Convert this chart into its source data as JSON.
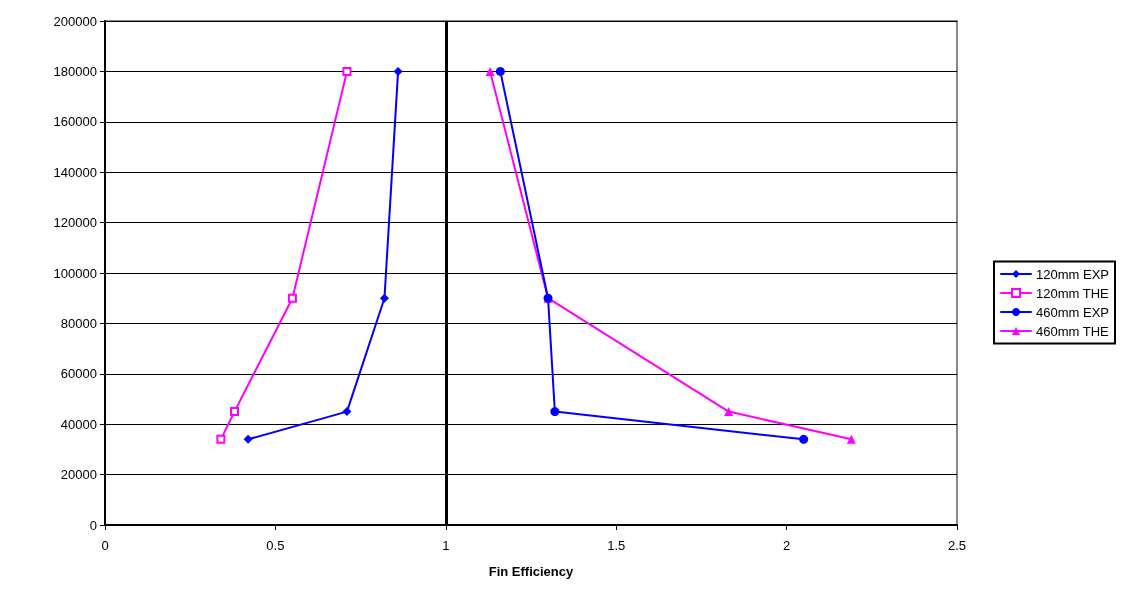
{
  "chart_data": {
    "type": "line",
    "xlabel": "Fin Efficiency",
    "xlim": [
      0,
      2.5
    ],
    "xticks": [
      0,
      0.5,
      1,
      1.5,
      2,
      2.5
    ],
    "ylim": [
      0,
      200000
    ],
    "yticks": [
      0,
      20000,
      40000,
      60000,
      80000,
      100000,
      120000,
      140000,
      160000,
      180000,
      200000
    ],
    "grid": "y",
    "legend": "right",
    "line_style": "solid",
    "ref_lines": [
      {
        "axis": "x",
        "value": 1,
        "color": "#000000"
      }
    ],
    "series": [
      {
        "name": "120mm EXP",
        "color": "#0000ff",
        "marker": "diamond",
        "x": [
          0.42,
          0.71,
          0.82,
          0.86
        ],
        "values": [
          34000,
          45000,
          90000,
          180000
        ]
      },
      {
        "name": "120mm THE",
        "color": "#ff00ff",
        "marker": "square",
        "x": [
          0.34,
          0.38,
          0.55,
          0.71
        ],
        "values": [
          34000,
          45000,
          90000,
          180000
        ]
      },
      {
        "name": "460mm EXP",
        "color": "#0000ff",
        "marker": "circle",
        "x": [
          2.05,
          1.32,
          1.3,
          1.16
        ],
        "values": [
          34000,
          45000,
          90000,
          180000
        ]
      },
      {
        "name": "460mm THE",
        "color": "#ff00ff",
        "marker": "triangle",
        "x": [
          2.19,
          1.83,
          1.3,
          1.13
        ],
        "values": [
          34000,
          45000,
          90000,
          180000
        ]
      }
    ]
  }
}
